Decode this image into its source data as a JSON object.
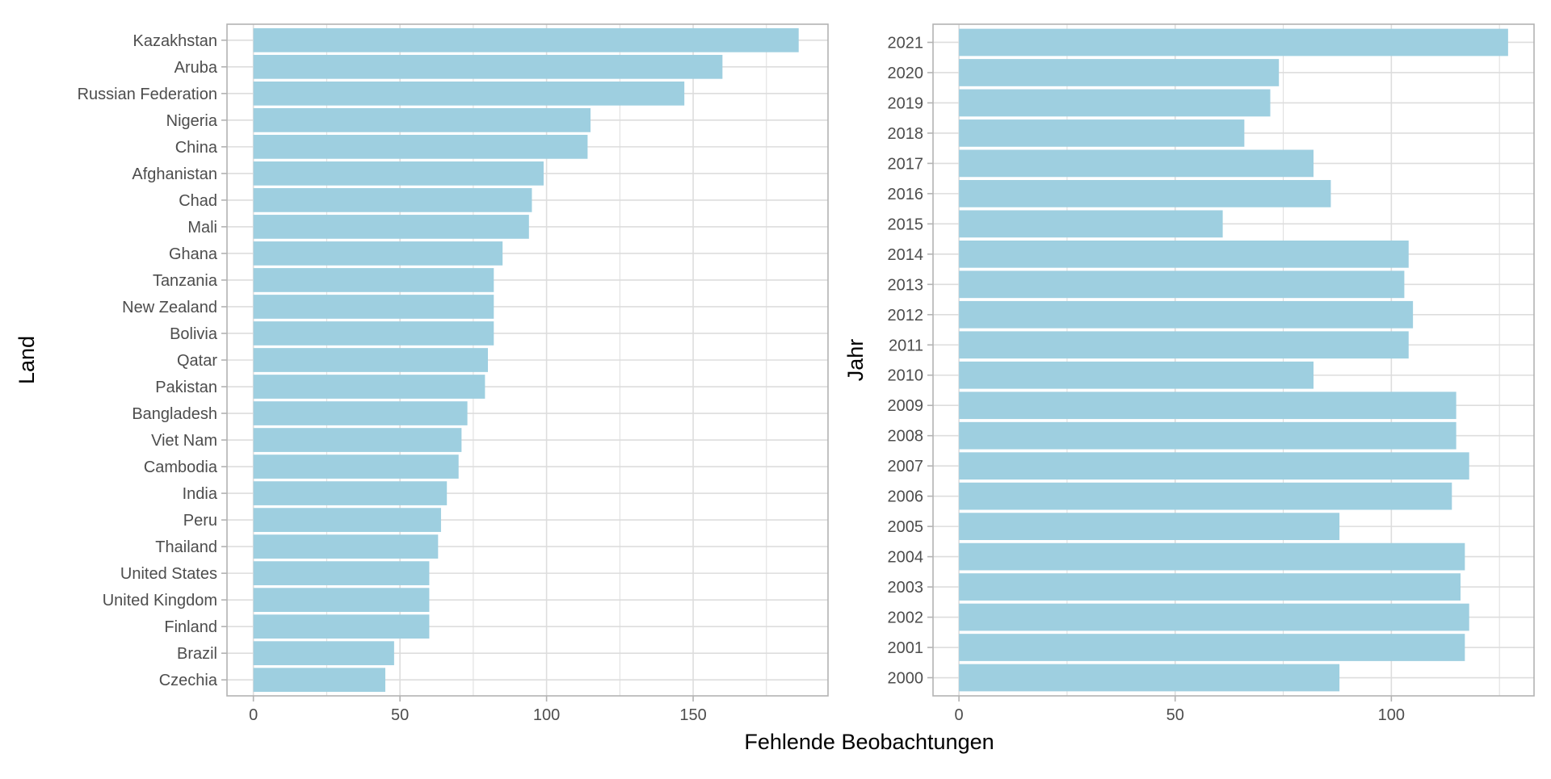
{
  "figure": {
    "shared_xlabel": "Fehlende Beobachtungen"
  },
  "colors": {
    "bar": "#9ECFE0",
    "grid": "#DDDDDD",
    "panel_border": "#B3B3B3",
    "tick_text": "#4D4D4D",
    "axis_title": "#000000"
  },
  "chart_data": [
    {
      "type": "bar",
      "orientation": "horizontal",
      "title": "",
      "xlabel": "Fehlende Beobachtungen",
      "ylabel": "Land",
      "xlim": [
        -9,
        196
      ],
      "xticks": [
        0,
        50,
        100,
        150
      ],
      "grid": true,
      "categories": [
        "Kazakhstan",
        "Aruba",
        "Russian Federation",
        "Nigeria",
        "China",
        "Afghanistan",
        "Chad",
        "Mali",
        "Ghana",
        "Tanzania",
        "New Zealand",
        "Bolivia",
        "Qatar",
        "Pakistan",
        "Bangladesh",
        "Viet Nam",
        "Cambodia",
        "India",
        "Peru",
        "Thailand",
        "United States",
        "United Kingdom",
        "Finland",
        "Brazil",
        "Czechia"
      ],
      "values": [
        186,
        160,
        147,
        115,
        114,
        99,
        95,
        94,
        85,
        82,
        82,
        82,
        80,
        79,
        73,
        71,
        70,
        66,
        64,
        63,
        60,
        60,
        60,
        48,
        45
      ]
    },
    {
      "type": "bar",
      "orientation": "horizontal",
      "title": "",
      "xlabel": "Fehlende Beobachtungen",
      "ylabel": "Jahr",
      "xlim": [
        -6,
        133
      ],
      "xticks": [
        0,
        50,
        100
      ],
      "grid": true,
      "categories": [
        "2021",
        "2020",
        "2019",
        "2018",
        "2017",
        "2016",
        "2015",
        "2014",
        "2013",
        "2012",
        "2011",
        "2010",
        "2009",
        "2008",
        "2007",
        "2006",
        "2005",
        "2004",
        "2003",
        "2002",
        "2001",
        "2000"
      ],
      "values": [
        127,
        74,
        72,
        66,
        82,
        86,
        61,
        104,
        103,
        105,
        104,
        82,
        115,
        115,
        118,
        114,
        88,
        117,
        116,
        118,
        117,
        88
      ]
    }
  ]
}
